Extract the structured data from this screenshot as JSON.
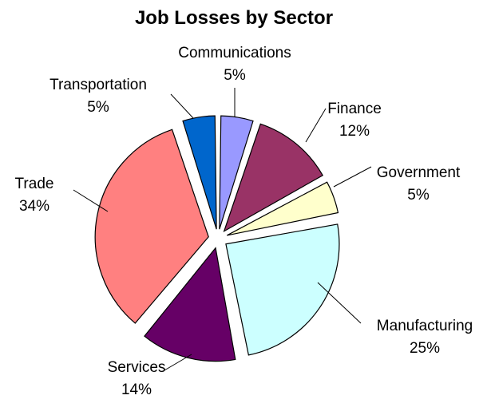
{
  "chart_data": {
    "type": "pie",
    "title": "Job Losses by Sector",
    "exploded": true,
    "start": "top (12 o'clock), clockwise",
    "slices": [
      {
        "label": "Communications",
        "value": 5,
        "value_label": "5%",
        "color": "#9999ff"
      },
      {
        "label": "Finance",
        "value": 12,
        "value_label": "12%",
        "color": "#993366"
      },
      {
        "label": "Government",
        "value": 5,
        "value_label": "5%",
        "color": "#ffffcc"
      },
      {
        "label": "Manufacturing",
        "value": 25,
        "value_label": "25%",
        "color": "#ccffff"
      },
      {
        "label": "Services",
        "value": 14,
        "value_label": "14%",
        "color": "#660066"
      },
      {
        "label": "Trade",
        "value": 34,
        "value_label": "34%",
        "color": "#ff8080"
      },
      {
        "label": "Transportation",
        "value": 5,
        "value_label": "5%",
        "color": "#0066cc"
      }
    ]
  }
}
